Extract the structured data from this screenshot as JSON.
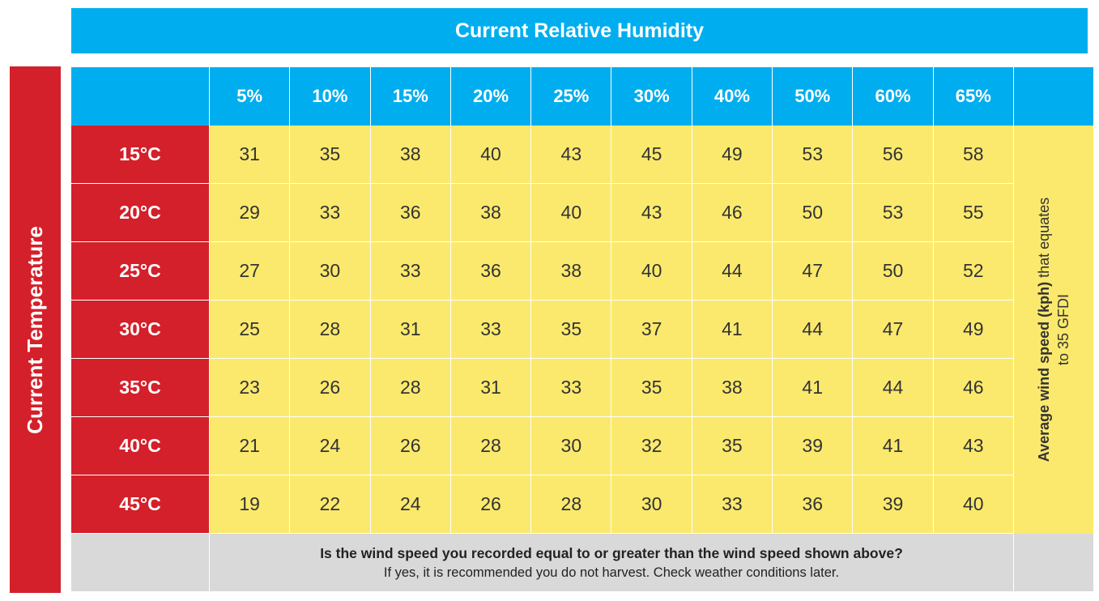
{
  "title": "Current Relative Humidity",
  "side_label": "Current Temperature",
  "right_note": {
    "bold": "Average wind speed (kph)",
    "rest": " that equates",
    "line2": "to 35 GFDI"
  },
  "footer": {
    "question": "Is the wind speed you recorded equal to or greater than the wind speed shown above?",
    "advice": "If yes, it is recommended you do not harvest. Check weather conditions later."
  },
  "colors": {
    "blue": "#00aeef",
    "red": "#d4202a",
    "yellow": "#fbe96d",
    "grey": "#d9d9d9"
  },
  "chart_data": {
    "type": "table",
    "title": "Current Relative Humidity",
    "ylabel": "Current Temperature",
    "columns": [
      "5%",
      "10%",
      "15%",
      "20%",
      "25%",
      "30%",
      "40%",
      "50%",
      "60%",
      "65%"
    ],
    "rows": [
      {
        "label": "15°C",
        "values": [
          31,
          35,
          38,
          40,
          43,
          45,
          49,
          53,
          56,
          58
        ]
      },
      {
        "label": "20°C",
        "values": [
          29,
          33,
          36,
          38,
          40,
          43,
          46,
          50,
          53,
          55
        ]
      },
      {
        "label": "25°C",
        "values": [
          27,
          30,
          33,
          36,
          38,
          40,
          44,
          47,
          50,
          52
        ]
      },
      {
        "label": "30°C",
        "values": [
          25,
          28,
          31,
          33,
          35,
          37,
          41,
          44,
          47,
          49
        ]
      },
      {
        "label": "35°C",
        "values": [
          23,
          26,
          28,
          31,
          33,
          35,
          38,
          41,
          44,
          46
        ]
      },
      {
        "label": "40°C",
        "values": [
          21,
          24,
          26,
          28,
          30,
          32,
          35,
          39,
          41,
          43
        ]
      },
      {
        "label": "45°C",
        "values": [
          19,
          22,
          24,
          26,
          28,
          30,
          33,
          36,
          39,
          40
        ]
      }
    ]
  }
}
